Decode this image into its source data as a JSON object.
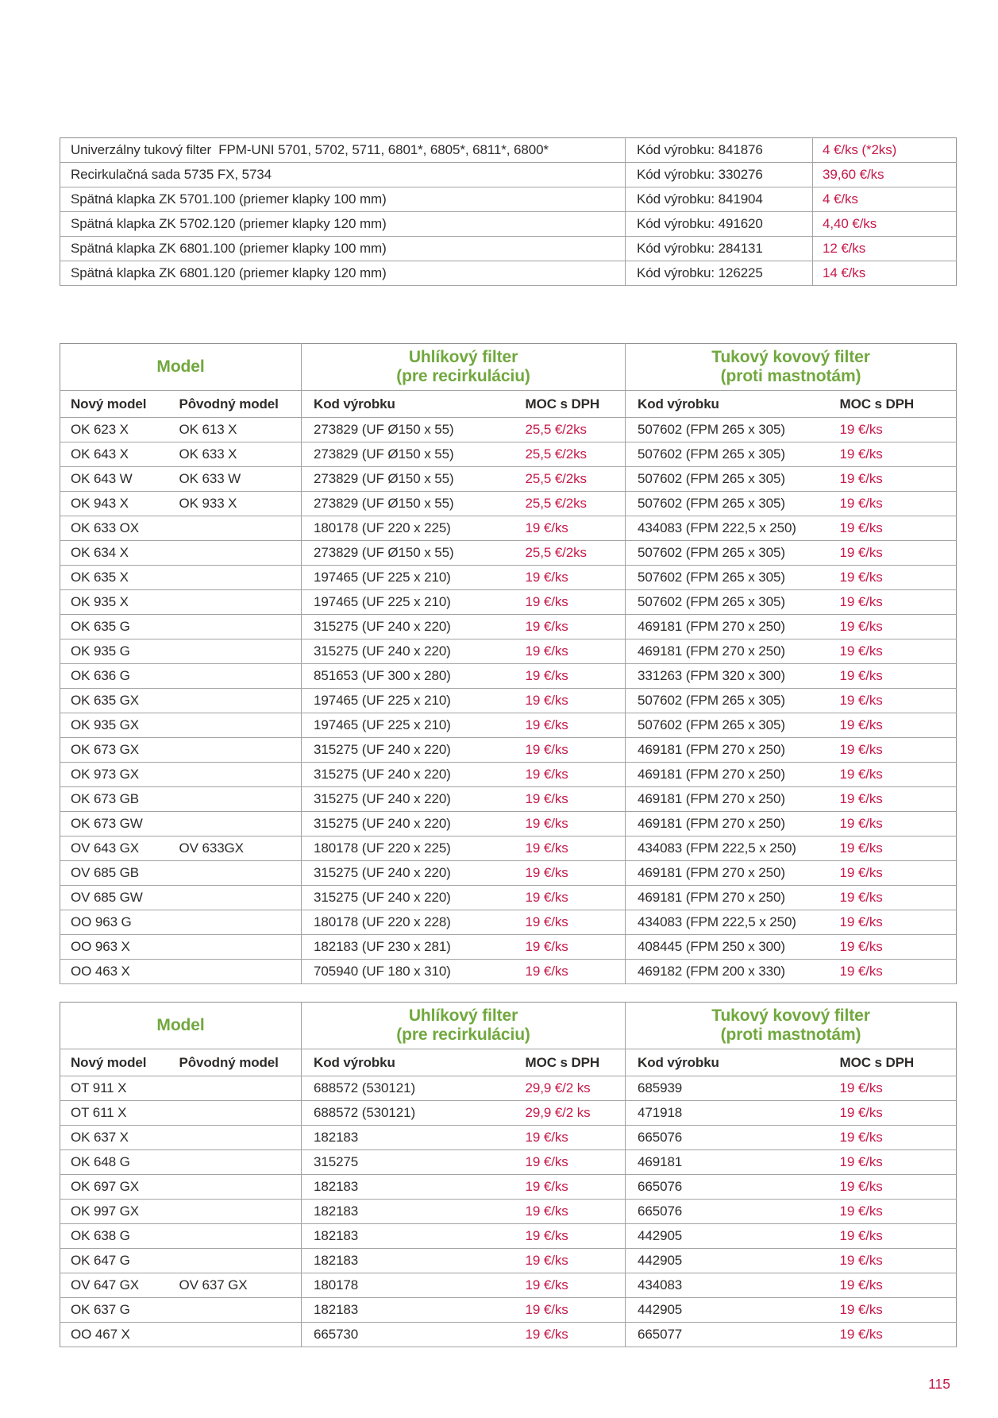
{
  "page": {
    "number": "115"
  },
  "colors": {
    "accent_red": "#c51a4b",
    "accent_green": "#71a83e",
    "text": "#2e2c2b",
    "border": "#a3a3a3"
  },
  "top_table": {
    "rows": [
      {
        "name": "Univerzálny tukový filter  FPM-UNI 5701, 5702, 5711, 6801*, 6805*, 6811*, 6800*",
        "code": "Kód výrobku: 841876",
        "price": "4 €/ks (*2ks)"
      },
      {
        "name": "Recirkulačná sada 5735 FX, 5734",
        "code": "Kód výrobku: 330276",
        "price": "39,60 €/ks"
      },
      {
        "name": "Spätná klapka ZK 5701.100 (priemer klapky 100 mm)",
        "code": "Kód výrobku: 841904",
        "price": "4 €/ks"
      },
      {
        "name": "Spätná klapka ZK 5702.120 (priemer klapky 120 mm)",
        "code": "Kód výrobku: 491620",
        "price": "4,40 €/ks"
      },
      {
        "name": "Spätná klapka ZK 6801.100 (priemer klapky 100 mm)",
        "code": "Kód výrobku: 284131",
        "price": "12 €/ks"
      },
      {
        "name": "Spätná klapka ZK 6801.120 (priemer klapky 120 mm)",
        "code": "Kód výrobku: 126225",
        "price": "14 €/ks"
      }
    ]
  },
  "table1": {
    "headers": {
      "model": "Model",
      "carbon_title": "Uhlíkový filter",
      "carbon_sub": "(pre recirkuláciu)",
      "grease_title": "Tukový kovový filter",
      "grease_sub": "(proti mastnotám)"
    },
    "columns": {
      "new_model": "Nový model",
      "old_model": "Pôvodný model",
      "code1": "Kod výrobku",
      "moc1": "MOC s DPH",
      "code2": "Kod výrobku",
      "moc2": "MOC s DPH"
    },
    "rows": [
      [
        "OK 623 X",
        "OK 613 X",
        "273829 (UF Ø150 x 55)",
        "25,5 €/2ks",
        "507602 (FPM 265 x 305)",
        "19 €/ks"
      ],
      [
        "OK 643 X",
        "OK 633 X",
        "273829 (UF Ø150 x 55)",
        "25,5 €/2ks",
        "507602 (FPM 265 x 305)",
        "19 €/ks"
      ],
      [
        "OK 643 W",
        "OK 633 W",
        "273829 (UF Ø150 x 55)",
        "25,5 €/2ks",
        "507602 (FPM 265 x 305)",
        "19 €/ks"
      ],
      [
        "OK 943 X",
        "OK 933 X",
        "273829 (UF Ø150 x 55)",
        "25,5 €/2ks",
        "507602 (FPM 265 x 305)",
        "19 €/ks"
      ],
      [
        "OK 633 OX",
        "",
        "180178 (UF 220 x 225)",
        "19 €/ks",
        "434083 (FPM 222,5 x 250)",
        "19 €/ks"
      ],
      [
        "OK 634 X",
        "",
        "273829 (UF Ø150 x 55)",
        "25,5 €/2ks",
        "507602 (FPM 265 x 305)",
        "19 €/ks"
      ],
      [
        "OK 635 X",
        "",
        "197465 (UF 225 x 210)",
        "19 €/ks",
        "507602 (FPM 265 x 305)",
        "19 €/ks"
      ],
      [
        "OK 935 X",
        "",
        "197465 (UF 225 x 210)",
        "19 €/ks",
        "507602 (FPM 265 x 305)",
        "19 €/ks"
      ],
      [
        "OK 635 G",
        "",
        "315275 (UF 240 x 220)",
        "19 €/ks",
        "469181 (FPM 270 x 250)",
        "19 €/ks"
      ],
      [
        "OK 935 G",
        "",
        "315275 (UF 240 x 220)",
        "19 €/ks",
        "469181 (FPM 270 x 250)",
        "19 €/ks"
      ],
      [
        "OK 636 G",
        "",
        "851653 (UF 300 x 280)",
        "19 €/ks",
        "331263 (FPM 320 x 300)",
        "19 €/ks"
      ],
      [
        "OK 635 GX",
        "",
        "197465 (UF 225 x 210)",
        "19 €/ks",
        "507602 (FPM 265 x 305)",
        "19 €/ks"
      ],
      [
        "OK 935 GX",
        "",
        "197465 (UF 225 x 210)",
        "19 €/ks",
        "507602 (FPM 265 x 305)",
        "19 €/ks"
      ],
      [
        "OK 673 GX",
        "",
        "315275 (UF 240 x 220)",
        "19 €/ks",
        "469181 (FPM 270 x 250)",
        "19 €/ks"
      ],
      [
        "OK 973 GX",
        "",
        "315275 (UF 240 x 220)",
        "19 €/ks",
        "469181 (FPM 270 x 250)",
        "19 €/ks"
      ],
      [
        "OK 673 GB",
        "",
        "315275 (UF 240 x 220)",
        "19 €/ks",
        "469181 (FPM 270 x 250)",
        "19 €/ks"
      ],
      [
        "OK 673 GW",
        "",
        "315275 (UF 240 x 220)",
        "19 €/ks",
        "469181 (FPM 270 x 250)",
        "19 €/ks"
      ],
      [
        "OV 643 GX",
        "OV 633GX",
        "180178 (UF 220 x 225)",
        "19 €/ks",
        "434083 (FPM 222,5 x 250)",
        "19 €/ks"
      ],
      [
        "OV 685 GB",
        "",
        "315275 (UF 240 x 220)",
        "19 €/ks",
        "469181 (FPM 270 x 250)",
        "19 €/ks"
      ],
      [
        "OV 685 GW",
        "",
        "315275 (UF 240 x 220)",
        "19 €/ks",
        "469181 (FPM 270 x 250)",
        "19 €/ks"
      ],
      [
        "OO 963 G",
        "",
        "180178 (UF 220 x 228)",
        "19 €/ks",
        "434083 (FPM 222,5 x 250)",
        "19 €/ks"
      ],
      [
        "OO 963 X",
        "",
        "182183 (UF 230 x 281)",
        "19 €/ks",
        "408445 (FPM 250 x 300)",
        "19 €/ks"
      ],
      [
        "OO 463 X",
        "",
        "705940 (UF 180 x 310)",
        "19 €/ks",
        "469182 (FPM 200 x 330)",
        "19 €/ks"
      ]
    ]
  },
  "table2": {
    "headers": {
      "model": "Model",
      "carbon_title": "Uhlíkový filter",
      "carbon_sub": "(pre recirkuláciu)",
      "grease_title": "Tukový kovový filter",
      "grease_sub": "(proti mastnotám)"
    },
    "columns": {
      "new_model": "Nový model",
      "old_model": "Pôvodný model",
      "code1": "Kod výrobku",
      "moc1": "MOC s DPH",
      "code2": "Kod výrobku",
      "moc2": "MOC s DPH"
    },
    "rows": [
      [
        "OT 911 X",
        "",
        "688572 (530121)",
        "29,9 €/2 ks",
        "685939",
        "19 €/ks"
      ],
      [
        "OT 611 X",
        "",
        "688572 (530121)",
        "29,9 €/2 ks",
        "471918",
        "19 €/ks"
      ],
      [
        "OK 637 X",
        "",
        "182183",
        "19 €/ks",
        "665076",
        "19 €/ks"
      ],
      [
        "OK 648 G",
        "",
        "315275",
        "19 €/ks",
        "469181",
        "19 €/ks"
      ],
      [
        "OK 697 GX",
        "",
        "182183",
        "19 €/ks",
        "665076",
        "19 €/ks"
      ],
      [
        "OK 997 GX",
        "",
        "182183",
        "19 €/ks",
        "665076",
        "19 €/ks"
      ],
      [
        "OK 638 G",
        "",
        "182183",
        "19 €/ks",
        "442905",
        "19 €/ks"
      ],
      [
        "OK 647 G",
        "",
        "182183",
        "19 €/ks",
        "442905",
        "19 €/ks"
      ],
      [
        "OV 647 GX",
        "OV 637 GX",
        "180178",
        "19 €/ks",
        "434083",
        "19 €/ks"
      ],
      [
        "OK 637 G",
        "",
        "182183",
        "19 €/ks",
        "442905",
        "19 €/ks"
      ],
      [
        "OO 467 X",
        "",
        "665730",
        "19 €/ks",
        "665077",
        "19 €/ks"
      ]
    ]
  }
}
